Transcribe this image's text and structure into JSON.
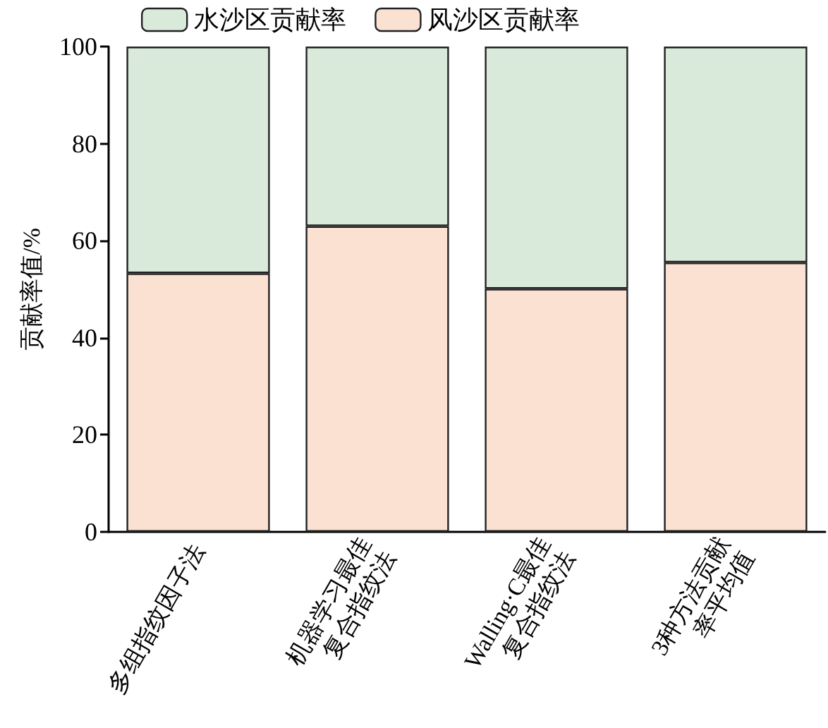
{
  "chart_data": {
    "type": "bar",
    "ylabel": "贡献率值/%",
    "categories": [
      "多组指纹因子法",
      "机器学习最佳\n复合指纹法",
      "Walling·C最佳\n复合指纹法",
      "3种方法贡献\n率平均值"
    ],
    "stacked": true,
    "legend": "top",
    "grid": false,
    "ylim": [
      0,
      100
    ],
    "yticks": [
      0,
      20,
      40,
      60,
      80,
      100
    ],
    "series": [
      {
        "name": "风沙区贡献率",
        "color": "#fbe1d1",
        "values": [
          53.3,
          63.0,
          50.1,
          55.5
        ]
      },
      {
        "name": "水沙区贡献率",
        "color": "#d9eadb",
        "values": [
          46.7,
          37.0,
          49.9,
          44.5
        ]
      }
    ]
  }
}
